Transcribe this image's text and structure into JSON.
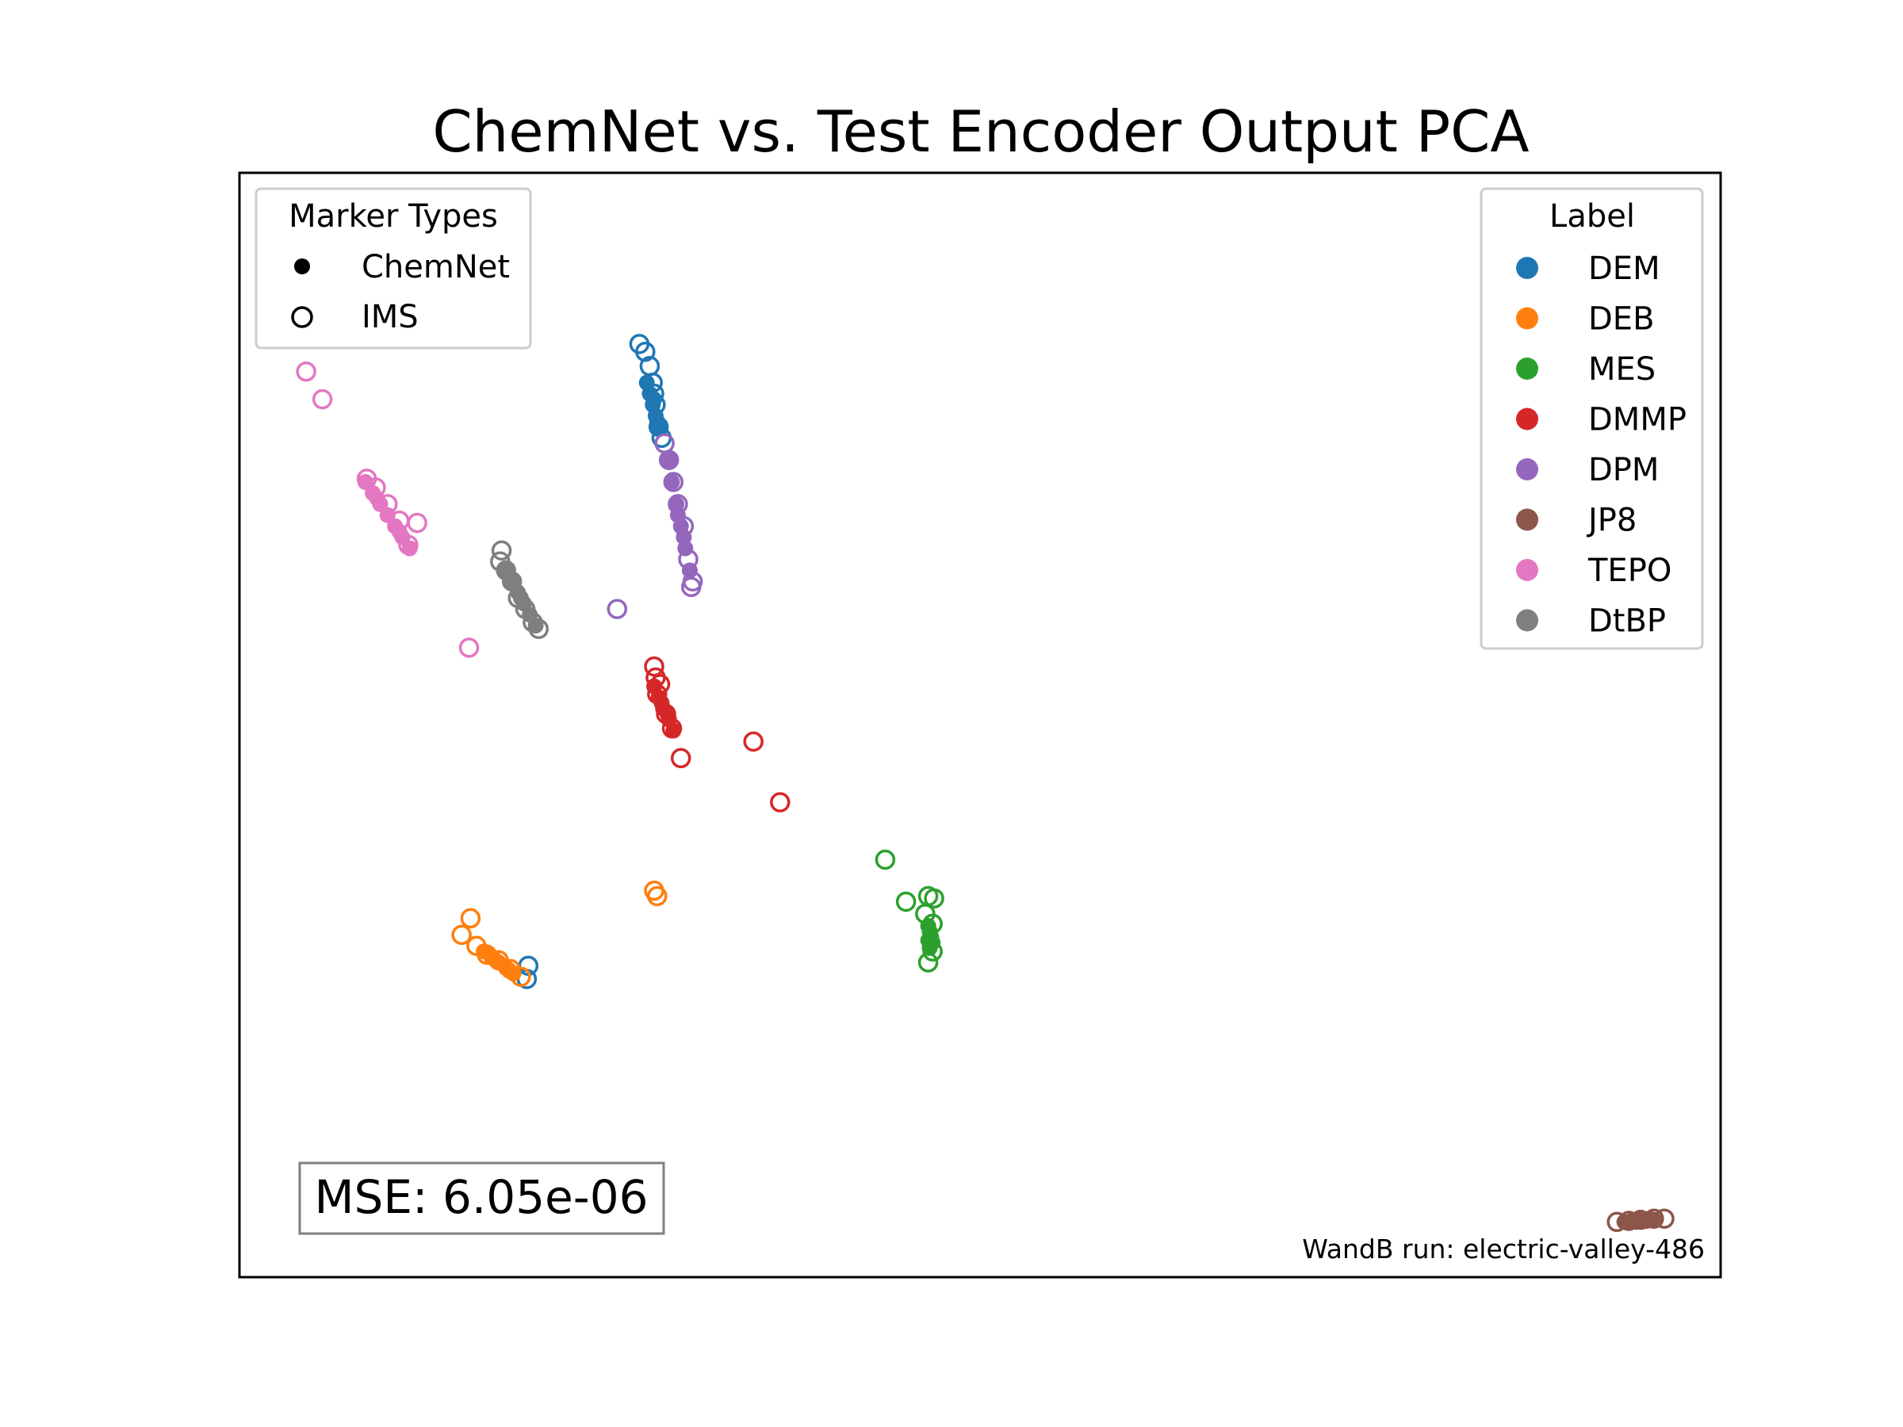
{
  "chart_data": {
    "type": "scatter",
    "title": "ChemNet vs. Test Encoder Output PCA",
    "xlabel": "",
    "ylabel": "",
    "grid": false,
    "axes_ticks": false,
    "legends": {
      "marker_types": {
        "title": "Marker Types",
        "placement": "upper-left",
        "entries": [
          {
            "label": "ChemNet",
            "marker": "filled"
          },
          {
            "label": "IMS",
            "marker": "hollow"
          }
        ]
      },
      "label": {
        "title": "Label",
        "placement": "upper-right",
        "entries": [
          {
            "label": "DEM",
            "color": "#1f77b4"
          },
          {
            "label": "DEB",
            "color": "#ff7f0e"
          },
          {
            "label": "MES",
            "color": "#2ca02c"
          },
          {
            "label": "DMMP",
            "color": "#d62728"
          },
          {
            "label": "DPM",
            "color": "#9467bd"
          },
          {
            "label": "JP8",
            "color": "#8c564b"
          },
          {
            "label": "TEPO",
            "color": "#e377c2"
          },
          {
            "label": "DtBP",
            "color": "#7f7f7f"
          }
        ]
      }
    },
    "annotations": {
      "mse": "MSE: 6.05e-06",
      "run": "WandB run: electric-valley-486"
    },
    "series": [
      {
        "name": "DEM",
        "color": "#1f77b4",
        "chemnet": [
          [
            0.275,
            0.81
          ],
          [
            0.277,
            0.8
          ],
          [
            0.279,
            0.79
          ],
          [
            0.281,
            0.78
          ],
          [
            0.283,
            0.77
          ],
          [
            0.28,
            0.795
          ],
          [
            0.282,
            0.775
          ]
        ],
        "ims": [
          [
            0.27,
            0.845
          ],
          [
            0.274,
            0.838
          ],
          [
            0.277,
            0.825
          ],
          [
            0.279,
            0.81
          ],
          [
            0.281,
            0.79
          ],
          [
            0.283,
            0.77
          ],
          [
            0.285,
            0.76
          ],
          [
            0.28,
            0.8
          ],
          [
            0.195,
            0.282
          ],
          [
            0.194,
            0.27
          ]
        ]
      },
      {
        "name": "DEB",
        "color": "#ff7f0e",
        "chemnet": [
          [
            0.165,
            0.295
          ],
          [
            0.17,
            0.29
          ],
          [
            0.175,
            0.285
          ],
          [
            0.18,
            0.28
          ],
          [
            0.185,
            0.275
          ],
          [
            0.172,
            0.288
          ],
          [
            0.182,
            0.278
          ]
        ],
        "ims": [
          [
            0.156,
            0.325
          ],
          [
            0.15,
            0.31
          ],
          [
            0.16,
            0.3
          ],
          [
            0.167,
            0.292
          ],
          [
            0.175,
            0.287
          ],
          [
            0.183,
            0.279
          ],
          [
            0.19,
            0.272
          ],
          [
            0.28,
            0.35
          ],
          [
            0.282,
            0.345
          ]
        ]
      },
      {
        "name": "MES",
        "color": "#2ca02c",
        "chemnet": [
          [
            0.465,
            0.318
          ],
          [
            0.466,
            0.313
          ],
          [
            0.467,
            0.308
          ],
          [
            0.468,
            0.303
          ],
          [
            0.466,
            0.298
          ],
          [
            0.465,
            0.305
          ]
        ],
        "ims": [
          [
            0.436,
            0.378
          ],
          [
            0.45,
            0.34
          ],
          [
            0.465,
            0.345
          ],
          [
            0.469,
            0.343
          ],
          [
            0.463,
            0.329
          ],
          [
            0.468,
            0.32
          ],
          [
            0.465,
            0.285
          ],
          [
            0.468,
            0.295
          ]
        ]
      },
      {
        "name": "DMMP",
        "color": "#d62728",
        "chemnet": [
          [
            0.28,
            0.535
          ],
          [
            0.283,
            0.525
          ],
          [
            0.286,
            0.515
          ],
          [
            0.29,
            0.505
          ],
          [
            0.293,
            0.495
          ],
          [
            0.285,
            0.52
          ],
          [
            0.289,
            0.51
          ]
        ],
        "ims": [
          [
            0.28,
            0.553
          ],
          [
            0.281,
            0.543
          ],
          [
            0.284,
            0.537
          ],
          [
            0.282,
            0.528
          ],
          [
            0.288,
            0.51
          ],
          [
            0.292,
            0.497
          ],
          [
            0.298,
            0.47
          ],
          [
            0.347,
            0.485
          ],
          [
            0.365,
            0.43
          ]
        ]
      },
      {
        "name": "DPM",
        "color": "#9467bd",
        "chemnet": [
          [
            0.29,
            0.74
          ],
          [
            0.292,
            0.72
          ],
          [
            0.295,
            0.7
          ],
          [
            0.298,
            0.68
          ],
          [
            0.301,
            0.66
          ],
          [
            0.304,
            0.64
          ],
          [
            0.296,
            0.69
          ],
          [
            0.3,
            0.67
          ]
        ],
        "ims": [
          [
            0.287,
            0.755
          ],
          [
            0.29,
            0.74
          ],
          [
            0.293,
            0.72
          ],
          [
            0.296,
            0.7
          ],
          [
            0.3,
            0.68
          ],
          [
            0.303,
            0.65
          ],
          [
            0.306,
            0.63
          ],
          [
            0.305,
            0.625
          ],
          [
            0.255,
            0.605
          ]
        ]
      },
      {
        "name": "JP8",
        "color": "#8c564b",
        "chemnet": [
          [
            0.935,
            0.05
          ],
          [
            0.94,
            0.051
          ],
          [
            0.945,
            0.052
          ],
          [
            0.95,
            0.051
          ],
          [
            0.955,
            0.052
          ],
          [
            0.943,
            0.05
          ],
          [
            0.952,
            0.053
          ]
        ],
        "ims": [
          [
            0.93,
            0.05
          ],
          [
            0.938,
            0.051
          ],
          [
            0.946,
            0.052
          ],
          [
            0.955,
            0.053
          ],
          [
            0.962,
            0.053
          ]
        ]
      },
      {
        "name": "TEPO",
        "color": "#e377c2",
        "chemnet": [
          [
            0.085,
            0.72
          ],
          [
            0.09,
            0.71
          ],
          [
            0.095,
            0.7
          ],
          [
            0.1,
            0.69
          ],
          [
            0.105,
            0.68
          ],
          [
            0.11,
            0.67
          ],
          [
            0.115,
            0.66
          ],
          [
            0.093,
            0.705
          ],
          [
            0.108,
            0.675
          ]
        ],
        "ims": [
          [
            0.045,
            0.82
          ],
          [
            0.056,
            0.795
          ],
          [
            0.086,
            0.723
          ],
          [
            0.092,
            0.715
          ],
          [
            0.1,
            0.7
          ],
          [
            0.108,
            0.685
          ],
          [
            0.114,
            0.663
          ],
          [
            0.12,
            0.683
          ],
          [
            0.155,
            0.57
          ]
        ]
      },
      {
        "name": "DtBP",
        "color": "#7f7f7f",
        "chemnet": [
          [
            0.18,
            0.64
          ],
          [
            0.184,
            0.63
          ],
          [
            0.188,
            0.62
          ],
          [
            0.192,
            0.61
          ],
          [
            0.196,
            0.6
          ],
          [
            0.2,
            0.59
          ],
          [
            0.19,
            0.615
          ]
        ],
        "ims": [
          [
            0.177,
            0.658
          ],
          [
            0.176,
            0.648
          ],
          [
            0.18,
            0.64
          ],
          [
            0.184,
            0.63
          ],
          [
            0.188,
            0.615
          ],
          [
            0.193,
            0.605
          ],
          [
            0.198,
            0.593
          ],
          [
            0.202,
            0.587
          ]
        ]
      }
    ]
  }
}
